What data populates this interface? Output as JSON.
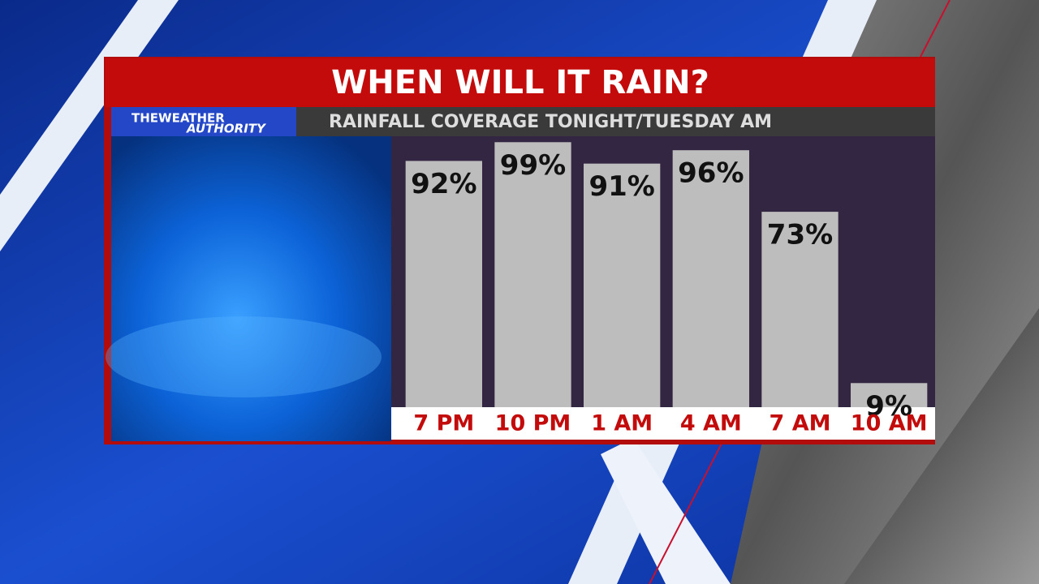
{
  "chart_data": {
    "type": "bar",
    "title": "WHEN WILL IT RAIN?",
    "subtitle": "RAINFALL COVERAGE TONIGHT/TUESDAY AM",
    "logo": [
      "THEWEATHER",
      "AUTHORITY"
    ],
    "categories": [
      "7 PM",
      "10 PM",
      "1 AM",
      "4 AM",
      "7 AM",
      "10 AM"
    ],
    "values": [
      92,
      99,
      91,
      96,
      73,
      9
    ],
    "value_labels": [
      "92%",
      "99%",
      "91%",
      "96%",
      "73%",
      "9%"
    ],
    "color": "#bdbdbd",
    "ylim": [
      0,
      100
    ]
  }
}
